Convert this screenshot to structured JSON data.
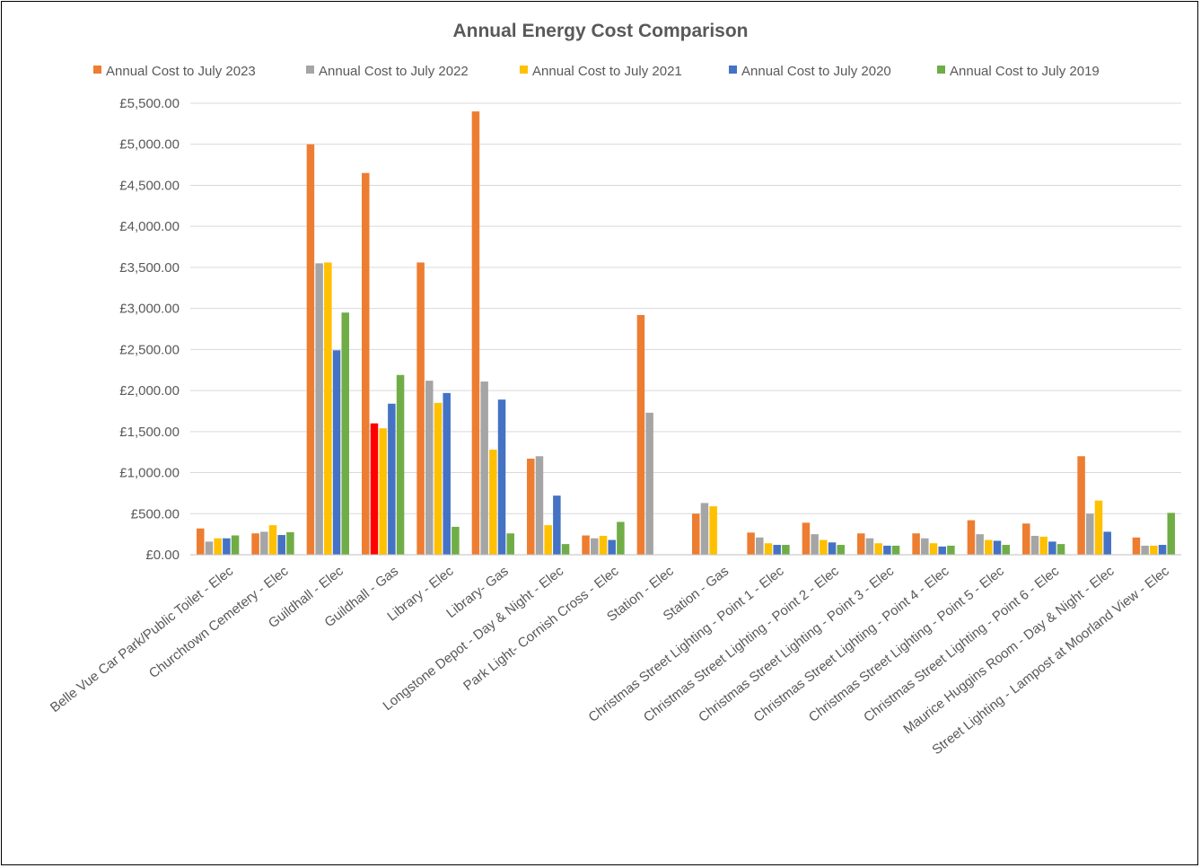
{
  "chart_data": {
    "type": "bar",
    "title": "Annual Energy Cost Comparison",
    "xlabel": "",
    "ylabel": "",
    "ylim": [
      0,
      5500
    ],
    "yticks": [
      "£0.00",
      "£500.00",
      "£1,000.00",
      "£1,500.00",
      "£2,000.00",
      "£2,500.00",
      "£3,000.00",
      "£3,500.00",
      "£4,000.00",
      "£4,500.00",
      "£5,000.00",
      "£5,500.00"
    ],
    "ytick_values": [
      0,
      500,
      1000,
      1500,
      2000,
      2500,
      3000,
      3500,
      4000,
      4500,
      5000,
      5500
    ],
    "grid": true,
    "legend_position": "top",
    "categories": [
      "Belle Vue Car Park/Public Toilet - Elec",
      "Churchtown Cemetery - Elec",
      "Guildhall - Elec",
      "Guildhall - Gas",
      "Library - Elec",
      "Library- Gas",
      "Longstone Depot - Day & Night - Elec",
      "Park Light- Cornish Cross - Elec",
      "Station - Elec",
      "Station - Gas",
      "Christmas Street Lighting - Point 1 - Elec",
      "Christmas Street Lighting - Point 2 - Elec",
      "Christmas Street Lighting - Point 3 - Elec",
      "Christmas Street Lighting - Point 4 - Elec",
      "Christmas Street Lighting - Point 5 - Elec",
      "Christmas Street Lighting - Point 6 - Elec",
      "Maurice Huggins Room - Day & Night - Elec",
      "Street Lighting - Lampost at Moorland View - Elec"
    ],
    "series": [
      {
        "name": "Annual Cost to July 2023",
        "color": "#ed7d31",
        "values": [
          320,
          260,
          5000,
          4650,
          3560,
          5400,
          1170,
          235,
          2920,
          500,
          270,
          390,
          260,
          260,
          420,
          380,
          1200,
          210
        ]
      },
      {
        "name": "Annual Cost to July 2022",
        "color": "#a5a5a5",
        "values": [
          160,
          280,
          3550,
          1600,
          2120,
          2110,
          1200,
          200,
          1730,
          630,
          210,
          250,
          200,
          200,
          250,
          230,
          500,
          110
        ]
      },
      {
        "name": "Annual Cost to July 2021",
        "color": "#ffc000",
        "values": [
          200,
          360,
          3560,
          1540,
          1850,
          1280,
          360,
          230,
          0,
          590,
          140,
          180,
          140,
          140,
          180,
          220,
          660,
          110
        ]
      },
      {
        "name": "Annual Cost to July 2020",
        "color": "#4472c4",
        "values": [
          200,
          240,
          2490,
          1840,
          1970,
          1890,
          720,
          180,
          0,
          0,
          120,
          150,
          110,
          100,
          170,
          160,
          280,
          120
        ]
      },
      {
        "name": "Annual Cost to July 2019",
        "color": "#70ad47",
        "values": [
          235,
          275,
          2950,
          2190,
          340,
          260,
          130,
          400,
          0,
          0,
          120,
          120,
          110,
          110,
          120,
          130,
          0,
          510
        ]
      }
    ],
    "highlight": {
      "category_index": 3,
      "series_index": 1,
      "color": "#ff0000"
    }
  }
}
